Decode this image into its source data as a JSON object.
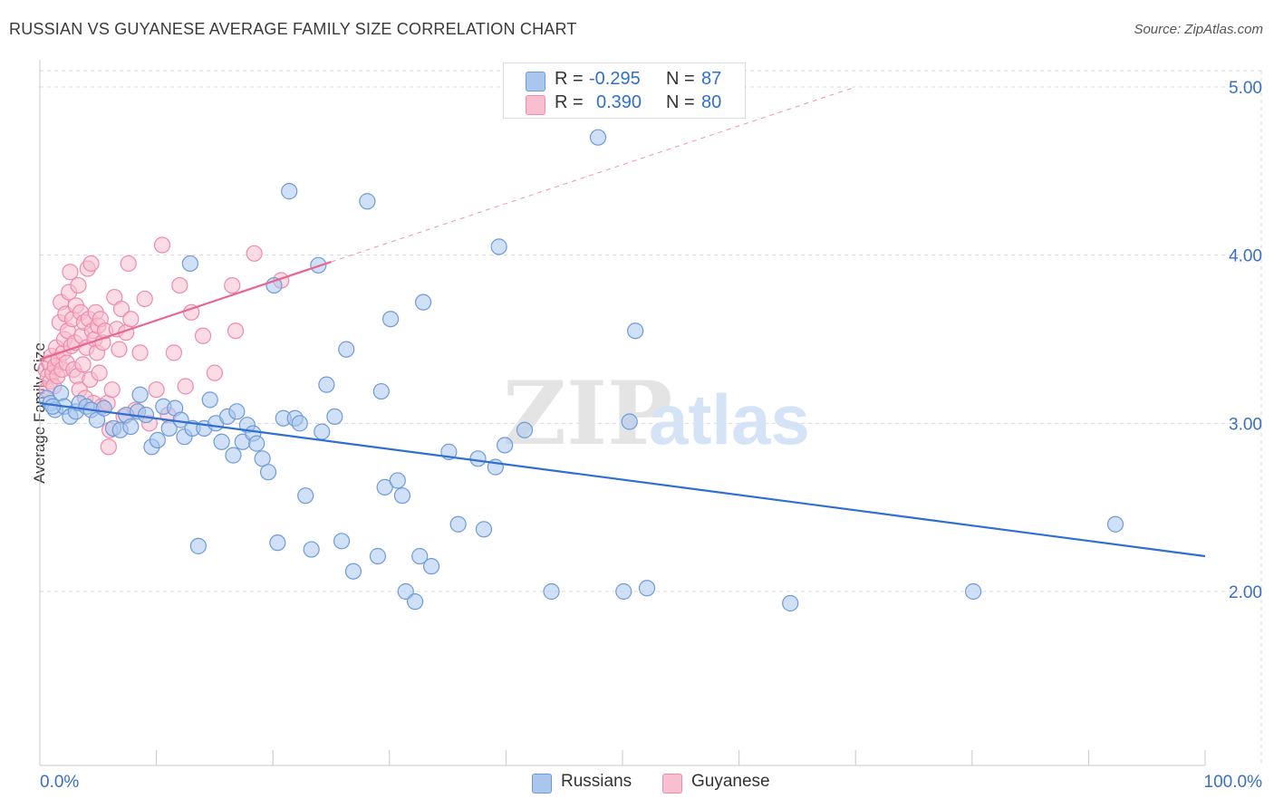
{
  "header": {
    "title": "RUSSIAN VS GUYANESE AVERAGE FAMILY SIZE CORRELATION CHART",
    "source": "Source: ZipAtlas.com"
  },
  "watermark": {
    "zip": "ZIP",
    "atlas": "atlas"
  },
  "legend": {
    "rows": [
      {
        "r_label": "R =",
        "r_value": "-0.295",
        "n_label": "N =",
        "n_value": "87",
        "color": "#8db4e8"
      },
      {
        "r_label": "R =",
        "r_value": "0.390",
        "n_label": "N =",
        "n_value": "80",
        "color": "#f4a7bf"
      }
    ]
  },
  "bottom_legend": {
    "russians": "Russians",
    "guyanese": "Guyanese"
  },
  "colors": {
    "blue_fill": "#a9c6ee",
    "blue_stroke": "#6e9bd8",
    "blue_line": "#2f6fd0",
    "pink_fill": "#f7bfd0",
    "pink_stroke": "#ee8aab",
    "pink_line": "#e8658f",
    "grid": "#d9d9d9",
    "tick_text": "#3b6fc4"
  },
  "chart_data": {
    "type": "scatter",
    "title": "RUSSIAN VS GUYANESE AVERAGE FAMILY SIZE CORRELATION CHART",
    "xlabel": "",
    "ylabel": "Average Family Size",
    "xlim": [
      0,
      100
    ],
    "ylim": [
      1.0,
      5.1
    ],
    "x_tick_labels": [
      "0.0%",
      "100.0%"
    ],
    "y_ticks": [
      2.0,
      3.0,
      4.0,
      5.0
    ],
    "y_tick_labels": [
      "2.00",
      "3.00",
      "4.00",
      "5.00"
    ],
    "grid": true,
    "series": [
      {
        "name": "Russians",
        "r": -0.295,
        "n": 87,
        "trend": {
          "x0": 0,
          "y0": 3.12,
          "x1": 100,
          "y1": 2.21
        },
        "points": [
          [
            0.6,
            3.15
          ],
          [
            0.9,
            3.12
          ],
          [
            1.3,
            3.08
          ],
          [
            1.8,
            3.18
          ],
          [
            2.1,
            3.1
          ],
          [
            2.6,
            3.04
          ],
          [
            3.1,
            3.07
          ],
          [
            3.4,
            3.12
          ],
          [
            4.0,
            3.1
          ],
          [
            4.4,
            3.08
          ],
          [
            4.9,
            3.02
          ],
          [
            5.5,
            3.09
          ],
          [
            6.3,
            2.97
          ],
          [
            6.9,
            2.96
          ],
          [
            7.4,
            3.05
          ],
          [
            7.8,
            2.98
          ],
          [
            8.4,
            3.07
          ],
          [
            8.6,
            3.17
          ],
          [
            9.1,
            3.05
          ],
          [
            9.6,
            2.86
          ],
          [
            10.1,
            2.9
          ],
          [
            10.6,
            3.1
          ],
          [
            11.1,
            2.97
          ],
          [
            11.6,
            3.09
          ],
          [
            12.1,
            3.02
          ],
          [
            12.4,
            2.92
          ],
          [
            12.9,
            3.95
          ],
          [
            13.1,
            2.97
          ],
          [
            13.6,
            2.27
          ],
          [
            14.1,
            2.97
          ],
          [
            14.6,
            3.14
          ],
          [
            15.1,
            3.0
          ],
          [
            15.6,
            2.89
          ],
          [
            16.1,
            3.04
          ],
          [
            16.6,
            2.81
          ],
          [
            16.9,
            3.07
          ],
          [
            17.4,
            2.89
          ],
          [
            17.8,
            2.99
          ],
          [
            18.3,
            2.94
          ],
          [
            18.6,
            2.88
          ],
          [
            19.1,
            2.79
          ],
          [
            19.6,
            2.71
          ],
          [
            20.1,
            3.82
          ],
          [
            20.4,
            2.29
          ],
          [
            20.9,
            3.03
          ],
          [
            21.4,
            4.38
          ],
          [
            21.9,
            3.03
          ],
          [
            22.3,
            3.0
          ],
          [
            22.8,
            2.57
          ],
          [
            23.3,
            2.25
          ],
          [
            23.9,
            3.94
          ],
          [
            24.2,
            2.95
          ],
          [
            24.6,
            3.23
          ],
          [
            25.3,
            3.04
          ],
          [
            25.9,
            2.3
          ],
          [
            26.3,
            3.44
          ],
          [
            26.9,
            2.12
          ],
          [
            28.1,
            4.32
          ],
          [
            29.0,
            2.21
          ],
          [
            29.3,
            3.19
          ],
          [
            29.6,
            2.62
          ],
          [
            30.1,
            3.62
          ],
          [
            30.7,
            2.66
          ],
          [
            31.1,
            2.57
          ],
          [
            31.4,
            2.0
          ],
          [
            32.2,
            1.94
          ],
          [
            32.6,
            2.21
          ],
          [
            32.9,
            3.72
          ],
          [
            33.6,
            2.15
          ],
          [
            35.1,
            2.83
          ],
          [
            35.9,
            2.4
          ],
          [
            37.6,
            2.79
          ],
          [
            38.1,
            2.37
          ],
          [
            39.1,
            2.74
          ],
          [
            39.4,
            4.05
          ],
          [
            39.9,
            2.87
          ],
          [
            41.6,
            2.96
          ],
          [
            43.9,
            2.0
          ],
          [
            47.9,
            4.7
          ],
          [
            50.1,
            2.0
          ],
          [
            50.6,
            3.01
          ],
          [
            51.1,
            3.55
          ],
          [
            52.1,
            2.02
          ],
          [
            64.4,
            1.93
          ],
          [
            80.1,
            2.0
          ],
          [
            92.3,
            2.4
          ],
          [
            1.1,
            3.1
          ]
        ]
      },
      {
        "name": "Guyanese",
        "r": 0.39,
        "n": 80,
        "trend": {
          "x0": 0,
          "y0": 3.38,
          "x1": 25,
          "y1": 3.96
        },
        "trend_extended": {
          "x0": 25,
          "y0": 3.96,
          "x1": 70,
          "y1": 5.0
        },
        "points": [
          [
            0.5,
            3.32
          ],
          [
            0.6,
            3.2
          ],
          [
            0.7,
            3.28
          ],
          [
            0.8,
            3.36
          ],
          [
            0.9,
            3.25
          ],
          [
            1.0,
            3.4
          ],
          [
            1.1,
            3.3
          ],
          [
            1.2,
            3.22
          ],
          [
            1.3,
            3.34
          ],
          [
            1.4,
            3.45
          ],
          [
            1.5,
            3.28
          ],
          [
            1.6,
            3.38
          ],
          [
            1.7,
            3.6
          ],
          [
            1.8,
            3.72
          ],
          [
            1.9,
            3.32
          ],
          [
            2.0,
            3.42
          ],
          [
            2.1,
            3.5
          ],
          [
            2.2,
            3.65
          ],
          [
            2.3,
            3.36
          ],
          [
            2.4,
            3.55
          ],
          [
            2.5,
            3.78
          ],
          [
            2.6,
            3.9
          ],
          [
            2.7,
            3.46
          ],
          [
            2.8,
            3.62
          ],
          [
            2.9,
            3.32
          ],
          [
            3.0,
            3.48
          ],
          [
            3.1,
            3.7
          ],
          [
            3.2,
            3.28
          ],
          [
            3.3,
            3.82
          ],
          [
            3.4,
            3.2
          ],
          [
            3.5,
            3.66
          ],
          [
            3.6,
            3.52
          ],
          [
            3.7,
            3.35
          ],
          [
            3.8,
            3.6
          ],
          [
            3.9,
            3.15
          ],
          [
            4.0,
            3.45
          ],
          [
            4.1,
            3.92
          ],
          [
            4.2,
            3.62
          ],
          [
            4.3,
            3.26
          ],
          [
            4.4,
            3.95
          ],
          [
            4.5,
            3.55
          ],
          [
            4.6,
            3.12
          ],
          [
            4.7,
            3.5
          ],
          [
            4.8,
            3.66
          ],
          [
            4.9,
            3.42
          ],
          [
            5.0,
            3.58
          ],
          [
            5.1,
            3.3
          ],
          [
            5.2,
            3.62
          ],
          [
            5.3,
            3.1
          ],
          [
            5.4,
            3.48
          ],
          [
            5.6,
            3.55
          ],
          [
            5.8,
            3.12
          ],
          [
            6.0,
            2.96
          ],
          [
            6.2,
            3.2
          ],
          [
            6.4,
            3.75
          ],
          [
            6.6,
            3.56
          ],
          [
            6.8,
            3.44
          ],
          [
            7.0,
            3.68
          ],
          [
            7.2,
            3.04
          ],
          [
            7.4,
            3.54
          ],
          [
            7.6,
            3.95
          ],
          [
            7.8,
            3.62
          ],
          [
            8.2,
            3.08
          ],
          [
            8.6,
            3.42
          ],
          [
            9.0,
            3.74
          ],
          [
            9.4,
            3.0
          ],
          [
            10.0,
            3.2
          ],
          [
            10.5,
            4.06
          ],
          [
            11.0,
            3.05
          ],
          [
            11.5,
            3.42
          ],
          [
            12.0,
            3.82
          ],
          [
            12.5,
            3.22
          ],
          [
            13.0,
            3.66
          ],
          [
            14.0,
            3.52
          ],
          [
            15.0,
            3.3
          ],
          [
            16.5,
            3.82
          ],
          [
            16.8,
            3.55
          ],
          [
            18.4,
            4.01
          ],
          [
            20.7,
            3.85
          ],
          [
            5.9,
            2.86
          ]
        ]
      }
    ]
  }
}
